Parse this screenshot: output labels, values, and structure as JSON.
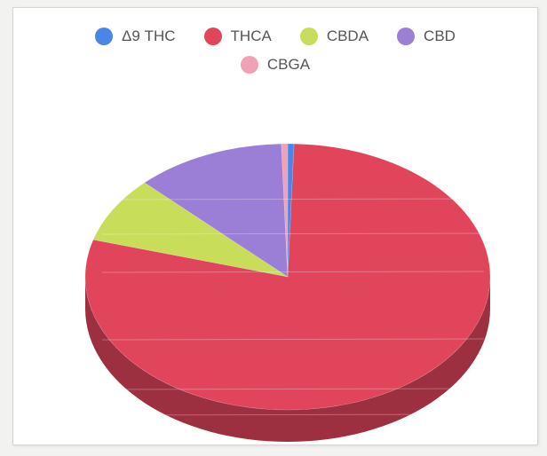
{
  "chart_data": {
    "type": "pie",
    "title": "",
    "legend_position": "top",
    "three_d": true,
    "series": [
      {
        "name": "Δ9 THC",
        "value": 0.5,
        "color": "#4a86e8"
      },
      {
        "name": "THCA",
        "value": 79.0,
        "color": "#e0455c"
      },
      {
        "name": "CBDA",
        "value": 8.0,
        "color": "#c8dd5a"
      },
      {
        "name": "CBD",
        "value": 12.0,
        "color": "#9b7ed6"
      },
      {
        "name": "CBGA",
        "value": 0.5,
        "color": "#f2a0b4"
      }
    ]
  }
}
